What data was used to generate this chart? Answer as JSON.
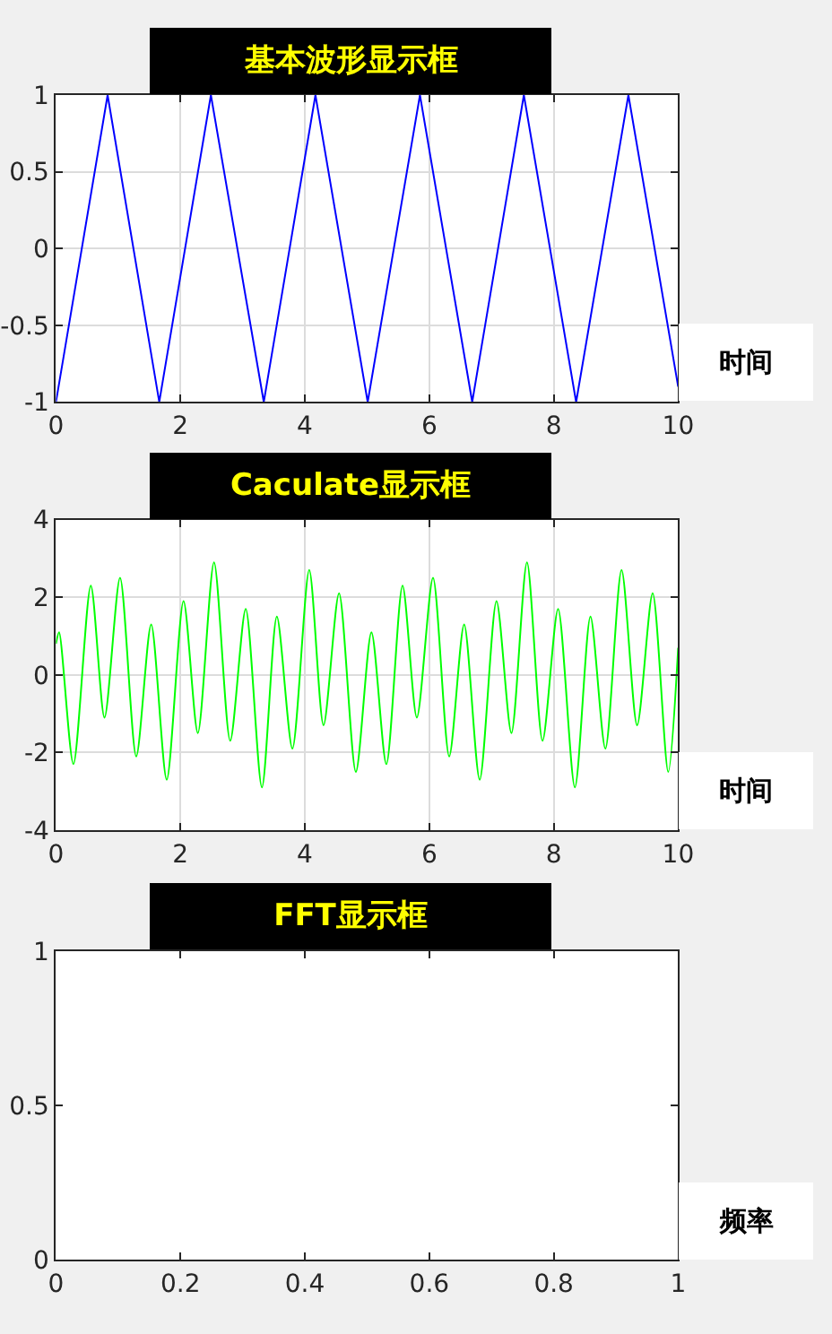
{
  "chart_data": [
    {
      "type": "line",
      "title": "基本波形显示框",
      "xlabel": "时间",
      "xlim": [
        0,
        10
      ],
      "xticks": [
        0,
        2,
        4,
        6,
        8,
        10
      ],
      "ylim": [
        -1,
        1
      ],
      "yticks": [
        -1,
        -0.5,
        0,
        0.5,
        1
      ],
      "grid": true,
      "marker": "none",
      "line_style": "solid",
      "series": [
        {
          "color": "#0000ff",
          "x": [
            0,
            0.83,
            1.66,
            2.49,
            3.34,
            4.17,
            5.01,
            5.85,
            6.69,
            7.52,
            8.36,
            9.2,
            10
          ],
          "values": [
            -1,
            1,
            -1,
            1,
            -1,
            1,
            -1,
            1,
            -1,
            1,
            -1,
            1,
            -0.9
          ]
        }
      ]
    },
    {
      "type": "line",
      "title": "Caculate显示框",
      "xlabel": "时间",
      "xlim": [
        0,
        10
      ],
      "xticks": [
        0,
        2,
        4,
        6,
        8,
        10
      ],
      "ylim": [
        -4,
        4
      ],
      "yticks": [
        -4,
        -2,
        0,
        2,
        4
      ],
      "grid": true,
      "marker": "none",
      "line_style": "solid",
      "series": [
        {
          "color": "#00ff00",
          "x": [
            0,
            0.05,
            0.28,
            0.56,
            0.78,
            1.03,
            1.29,
            1.53,
            1.78,
            2.05,
            2.28,
            2.54,
            2.8,
            3.05,
            3.31,
            3.55,
            3.8,
            4.07,
            4.3,
            4.55,
            4.82,
            5.07,
            5.31,
            5.57,
            5.8,
            6.06,
            6.32,
            6.56,
            6.81,
            7.08,
            7.32,
            7.57,
            7.82,
            8.07,
            8.34,
            8.59,
            8.83,
            9.09,
            9.34,
            9.59,
            9.84,
            10
          ],
          "values": [
            0.8,
            1.1,
            -2.3,
            2.3,
            -1.1,
            2.5,
            -2.1,
            1.3,
            -2.7,
            1.9,
            -1.5,
            2.9,
            -1.7,
            1.7,
            -2.9,
            1.5,
            -1.9,
            2.7,
            -1.3,
            2.1,
            -2.5,
            1.1,
            -2.3,
            2.3,
            -1.1,
            2.5,
            -2.1,
            1.3,
            -2.7,
            1.9,
            -1.5,
            2.9,
            -1.7,
            1.7,
            -2.9,
            1.5,
            -1.9,
            2.7,
            -1.3,
            2.1,
            -2.5,
            0.7
          ]
        }
      ]
    },
    {
      "type": "line",
      "title": "FFT显示框",
      "xlabel": "频率",
      "xlim": [
        0,
        1
      ],
      "xticks": [
        0,
        0.2,
        0.4,
        0.6,
        0.8,
        1
      ],
      "ylim": [
        0,
        1
      ],
      "yticks": [
        0,
        0.5,
        1
      ],
      "grid": false
    }
  ]
}
